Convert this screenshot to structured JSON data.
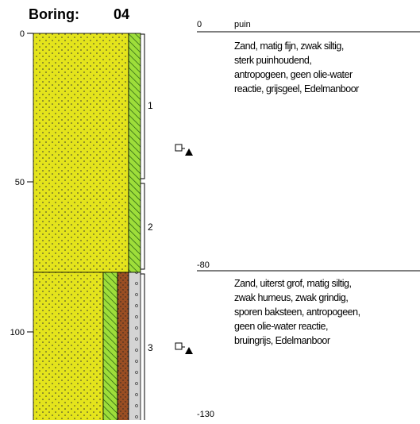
{
  "header": {
    "label": "Boring:",
    "number": "04"
  },
  "depth_scale": {
    "ticks": [
      "0",
      "50",
      "100"
    ]
  },
  "samples": [
    {
      "label": "1"
    },
    {
      "label": "2"
    },
    {
      "label": "3"
    }
  ],
  "layers": [
    {
      "top": "0",
      "name": "puin",
      "description": [
        "Zand, matig fijn, zwak siltig,",
        "sterk puinhoudend,",
        "antropogeen, geen olie-water",
        "reactie, grijsgeel, Edelmanboor"
      ]
    },
    {
      "top": "-80",
      "description": [
        "Zand, uiterst grof, matig siltig,",
        "zwak humeus, zwak grindig,",
        "sporen baksteen, antropogeen,",
        "geen olie-water reactie,",
        "bruingrijs, Edelmanboor"
      ]
    }
  ],
  "bottom": "-130"
}
